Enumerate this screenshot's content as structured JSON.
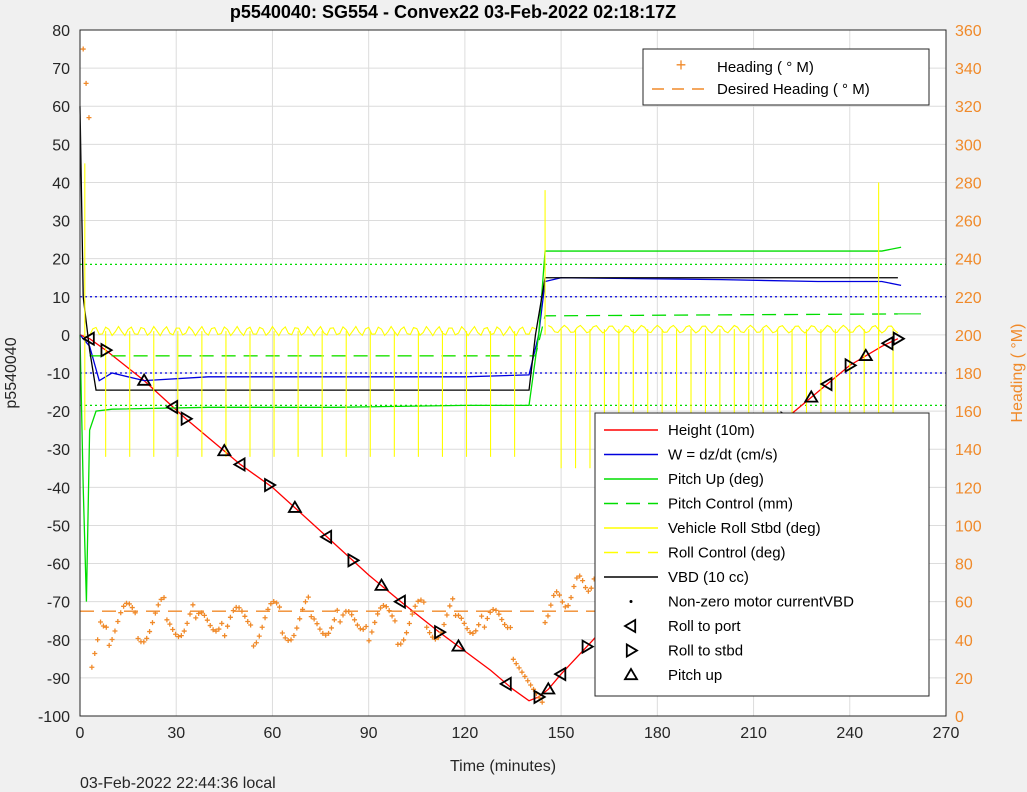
{
  "title": "p5540040: SG554 - Convex22 03-Feb-2022 02:18:17Z",
  "footer": "03-Feb-2022 22:44:36 local",
  "colors": {
    "height": "#ff0000",
    "w": "#0000dd",
    "pitch": "#00dd00",
    "roll": "#ffff00",
    "vbd": "#000000",
    "heading": "#f08a2a"
  },
  "chart_data": {
    "type": "line",
    "title": "p5540040: SG554 - Convex22 03-Feb-2022 02:18:17Z",
    "xlabel": "Time (minutes)",
    "ylabel": "p5540040",
    "ylabel_right": "Heading (  °M)",
    "xlim": [
      0,
      270
    ],
    "ylim": [
      -100,
      80
    ],
    "ylim_right": [
      0,
      360
    ],
    "x_ticks": [
      "0",
      "30",
      "60",
      "90",
      "120",
      "150",
      "180",
      "210",
      "240",
      "270"
    ],
    "y_ticks": [
      "80",
      "70",
      "60",
      "50",
      "40",
      "30",
      "20",
      "10",
      "0",
      "-10",
      "-20",
      "-30",
      "-40",
      "-50",
      "-60",
      "-70",
      "-80",
      "-90",
      "-100"
    ],
    "y_ticks_right": [
      "360",
      "340",
      "320",
      "300",
      "280",
      "260",
      "240",
      "220",
      "200",
      "180",
      "160",
      "140",
      "120",
      "100",
      "80",
      "60",
      "40",
      "20",
      "0"
    ],
    "grid": true,
    "legend_top": [
      "Heading (  ° M)",
      "Desired Heading (  ° M)"
    ],
    "legend_main": [
      "Height (10m)",
      "W = dz/dt (cm/s)",
      "Pitch Up (deg)",
      "Pitch Control (mm)",
      "Vehicle Roll Stbd (deg)",
      "Roll Control (deg)",
      "VBD (10 cc)",
      "Non-zero motor currentVBD",
      "Roll to port",
      "Roll to stbd",
      "Pitch up"
    ],
    "series": [
      {
        "name": "Height (10m)",
        "x": [
          0,
          3,
          8,
          20,
          33,
          50,
          60,
          77,
          90,
          100,
          112,
          128,
          135,
          140,
          143,
          146,
          150,
          160,
          175,
          190,
          205,
          220,
          230,
          240,
          250,
          255
        ],
        "values": [
          0,
          -1,
          -4,
          -12,
          -22,
          -34,
          -40,
          -53,
          -63,
          -70,
          -78,
          -88,
          -93,
          -96,
          -95,
          -93,
          -89,
          -80,
          -65,
          -50,
          -35,
          -22,
          -15,
          -8,
          -3,
          -1
        ]
      },
      {
        "name": "W = dz/dt (cm/s)",
        "x": [
          0,
          3,
          6,
          10,
          20,
          40,
          60,
          80,
          100,
          120,
          140,
          143,
          145,
          150,
          200,
          230,
          250,
          256
        ],
        "values": [
          0,
          -3,
          -12,
          -10,
          -12,
          -11,
          -11,
          -11,
          -11,
          -11,
          -10.5,
          0,
          14,
          15,
          14.5,
          14,
          14,
          13
        ]
      },
      {
        "name": "Pitch Up (deg)",
        "x": [
          0,
          1,
          2,
          3,
          5,
          10,
          40,
          80,
          120,
          140,
          143,
          145,
          150,
          200,
          250,
          256
        ],
        "values": [
          0,
          -40,
          -70,
          -25,
          -20,
          -19.5,
          -19,
          -19,
          -18.5,
          -18.5,
          0,
          22,
          22,
          22,
          22,
          23
        ]
      },
      {
        "name": "Pitch Control (mm)",
        "x": [
          3,
          142,
          145,
          255
        ],
        "values": [
          -5.5,
          -5.5,
          5,
          5.5
        ]
      },
      {
        "name": "VBD (10 cc)",
        "x": [
          0,
          1,
          3,
          5,
          140,
          142,
          145,
          255
        ],
        "values": [
          60,
          10,
          -4,
          -14.5,
          -14.5,
          0,
          15,
          15
        ]
      },
      {
        "name": "Desired Heading (  ° M)",
        "x": [
          0,
          256
        ],
        "values": [
          55,
          55
        ]
      }
    ],
    "reference_lines": [
      {
        "name": "pitch-up",
        "values": [
          18.5,
          -18.5
        ]
      },
      {
        "name": "w",
        "values": [
          10,
          -10
        ]
      }
    ]
  }
}
